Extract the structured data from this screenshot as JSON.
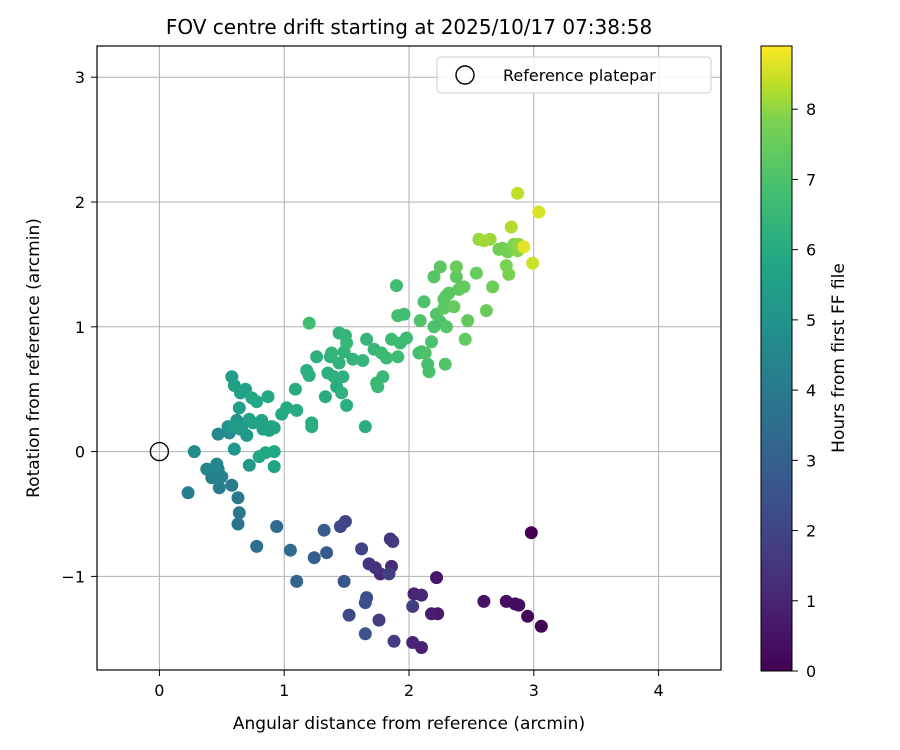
{
  "chart_data": {
    "type": "scatter",
    "title": "FOV centre drift starting at 2025/10/17 07:38:58",
    "xlabel": "Angular distance from reference (arcmin)",
    "ylabel": "Rotation from reference (arcmin)",
    "xlim": [
      -0.5,
      4.5
    ],
    "ylim": [
      -1.75,
      3.25
    ],
    "xticks": [
      0,
      1,
      2,
      3,
      4
    ],
    "xtick_labels": [
      "0",
      "1",
      "2",
      "3",
      "4"
    ],
    "yticks": [
      -1,
      0,
      1,
      2,
      3
    ],
    "ytick_labels": [
      "−1",
      "0",
      "1",
      "2",
      "3"
    ],
    "grid": true,
    "legend": {
      "position": "upper-right",
      "label": "Reference platepar"
    },
    "reference_point": {
      "x": 0,
      "y": 0
    },
    "colorbar": {
      "label": "Hours from first FF file",
      "colormap": "viridis",
      "range": [
        0,
        8.9
      ],
      "ticks": [
        0,
        1,
        2,
        3,
        4,
        5,
        6,
        7,
        8
      ],
      "tick_labels": [
        "0",
        "1",
        "2",
        "3",
        "4",
        "5",
        "6",
        "7",
        "8"
      ]
    },
    "points": [
      [
        2.98,
        -0.65,
        0.0
      ],
      [
        3.06,
        -1.4,
        0.1
      ],
      [
        2.95,
        -1.32,
        0.2
      ],
      [
        2.85,
        -1.22,
        0.3
      ],
      [
        2.88,
        -1.23,
        0.35
      ],
      [
        2.78,
        -1.2,
        0.4
      ],
      [
        2.6,
        -1.2,
        0.5
      ],
      [
        2.22,
        -1.01,
        0.6
      ],
      [
        2.23,
        -1.3,
        0.7
      ],
      [
        2.18,
        -1.3,
        0.8
      ],
      [
        2.1,
        -1.57,
        0.9
      ],
      [
        2.03,
        -1.53,
        1.0
      ],
      [
        2.04,
        -1.14,
        1.05
      ],
      [
        2.1,
        -1.15,
        1.1
      ],
      [
        1.86,
        -0.92,
        1.2
      ],
      [
        1.77,
        -0.98,
        1.3
      ],
      [
        1.73,
        -0.93,
        1.4
      ],
      [
        1.68,
        -0.9,
        1.5
      ],
      [
        1.85,
        -0.7,
        1.6
      ],
      [
        1.87,
        -0.72,
        1.65
      ],
      [
        1.76,
        -1.35,
        1.7
      ],
      [
        1.88,
        -1.52,
        1.75
      ],
      [
        2.03,
        -1.24,
        1.8
      ],
      [
        1.84,
        -0.98,
        1.85
      ],
      [
        1.62,
        -0.78,
        1.9
      ],
      [
        1.49,
        -0.56,
        2.0
      ],
      [
        1.45,
        -0.6,
        2.1
      ],
      [
        1.52,
        -1.31,
        2.2
      ],
      [
        1.66,
        -1.17,
        2.3
      ],
      [
        1.65,
        -1.21,
        2.4
      ],
      [
        1.65,
        -1.46,
        2.5
      ],
      [
        1.48,
        -1.04,
        2.6
      ],
      [
        1.34,
        -0.81,
        2.8
      ],
      [
        1.32,
        -0.63,
        2.9
      ],
      [
        1.24,
        -0.85,
        3.0
      ],
      [
        1.1,
        -1.04,
        3.2
      ],
      [
        0.94,
        -0.6,
        3.3
      ],
      [
        1.05,
        -0.79,
        3.4
      ],
      [
        0.78,
        -0.76,
        3.6
      ],
      [
        0.63,
        -0.58,
        3.8
      ],
      [
        0.64,
        -0.49,
        3.9
      ],
      [
        0.63,
        -0.37,
        4.0
      ],
      [
        0.58,
        -0.27,
        4.1
      ],
      [
        0.23,
        -0.33,
        4.15
      ],
      [
        0.48,
        -0.29,
        4.2
      ],
      [
        0.42,
        -0.21,
        4.3
      ],
      [
        0.5,
        -0.2,
        4.35
      ],
      [
        0.47,
        -0.14,
        4.4
      ],
      [
        0.38,
        -0.14,
        4.45
      ],
      [
        0.46,
        -0.1,
        4.5
      ],
      [
        0.47,
        0.14,
        4.6
      ],
      [
        0.28,
        0.0,
        4.7
      ],
      [
        0.56,
        0.15,
        4.8
      ],
      [
        0.62,
        0.25,
        5.0
      ],
      [
        0.55,
        0.2,
        5.1
      ],
      [
        0.6,
        0.02,
        5.15
      ],
      [
        0.7,
        0.13,
        5.2
      ],
      [
        0.72,
        -0.11,
        5.25
      ],
      [
        0.65,
        0.18,
        5.3
      ],
      [
        0.6,
        0.21,
        5.35
      ],
      [
        0.66,
        0.2,
        5.4
      ],
      [
        0.64,
        0.35,
        5.45
      ],
      [
        0.58,
        0.6,
        5.5
      ],
      [
        0.6,
        0.53,
        5.55
      ],
      [
        0.69,
        0.5,
        5.6
      ],
      [
        0.65,
        0.47,
        5.62
      ],
      [
        0.72,
        0.26,
        5.65
      ],
      [
        0.75,
        0.23,
        5.68
      ],
      [
        0.82,
        0.25,
        5.7
      ],
      [
        0.83,
        0.18,
        5.72
      ],
      [
        0.88,
        0.17,
        5.75
      ],
      [
        0.92,
        0.19,
        5.78
      ],
      [
        0.9,
        0.2,
        5.8
      ],
      [
        0.92,
        -0.12,
        5.82
      ],
      [
        0.8,
        -0.04,
        5.85
      ],
      [
        0.85,
        -0.01,
        5.88
      ],
      [
        0.92,
        0.0,
        5.9
      ],
      [
        0.87,
        0.44,
        5.92
      ],
      [
        0.78,
        0.4,
        5.94
      ],
      [
        0.74,
        0.43,
        5.96
      ],
      [
        0.98,
        0.3,
        6.0
      ],
      [
        1.02,
        0.35,
        6.02
      ],
      [
        1.1,
        0.33,
        6.04
      ],
      [
        1.09,
        0.5,
        6.06
      ],
      [
        1.22,
        0.2,
        6.08
      ],
      [
        1.22,
        0.23,
        6.1
      ],
      [
        1.33,
        0.44,
        6.12
      ],
      [
        1.42,
        0.52,
        6.14
      ],
      [
        1.5,
        0.37,
        6.16
      ],
      [
        1.65,
        0.2,
        6.18
      ],
      [
        1.18,
        0.65,
        6.2
      ],
      [
        1.2,
        0.61,
        6.22
      ],
      [
        1.26,
        0.76,
        6.24
      ],
      [
        1.37,
        0.76,
        6.26
      ],
      [
        1.35,
        0.63,
        6.28
      ],
      [
        1.4,
        0.6,
        6.3
      ],
      [
        1.46,
        0.47,
        6.32
      ],
      [
        1.47,
        0.6,
        6.34
      ],
      [
        1.44,
        0.71,
        6.36
      ],
      [
        1.48,
        0.8,
        6.38
      ],
      [
        1.38,
        0.79,
        6.4
      ],
      [
        1.44,
        0.95,
        6.42
      ],
      [
        1.49,
        0.93,
        6.44
      ],
      [
        1.55,
        0.74,
        6.46
      ],
      [
        1.63,
        0.73,
        6.48
      ],
      [
        1.66,
        0.9,
        6.5
      ],
      [
        1.5,
        0.87,
        6.52
      ],
      [
        1.72,
        0.82,
        6.55
      ],
      [
        1.74,
        0.55,
        6.58
      ],
      [
        1.75,
        0.52,
        6.6
      ],
      [
        1.79,
        0.6,
        6.62
      ],
      [
        1.78,
        0.79,
        6.65
      ],
      [
        1.82,
        0.75,
        6.68
      ],
      [
        1.86,
        0.9,
        6.7
      ],
      [
        1.91,
        0.76,
        6.72
      ],
      [
        1.93,
        0.87,
        6.75
      ],
      [
        1.98,
        0.91,
        6.78
      ],
      [
        1.9,
        1.33,
        6.8
      ],
      [
        1.2,
        1.03,
        6.82
      ],
      [
        1.91,
        1.09,
        6.85
      ],
      [
        1.96,
        1.1,
        6.88
      ],
      [
        2.1,
        0.8,
        6.9
      ],
      [
        2.08,
        0.79,
        6.92
      ],
      [
        2.15,
        0.7,
        6.95
      ],
      [
        2.16,
        0.64,
        6.98
      ],
      [
        2.18,
        0.88,
        7.0
      ],
      [
        2.25,
        1.04,
        7.02
      ],
      [
        2.2,
        1.0,
        7.05
      ],
      [
        2.12,
        1.2,
        7.08
      ],
      [
        2.13,
        0.79,
        7.1
      ],
      [
        2.09,
        1.05,
        7.12
      ],
      [
        2.22,
        1.1,
        7.15
      ],
      [
        2.29,
        0.7,
        7.18
      ],
      [
        2.3,
        1.0,
        7.2
      ],
      [
        2.2,
        1.4,
        7.22
      ],
      [
        2.28,
        1.22,
        7.25
      ],
      [
        2.3,
        1.25,
        7.28
      ],
      [
        2.32,
        1.27,
        7.3
      ],
      [
        2.28,
        1.15,
        7.33
      ],
      [
        2.25,
        1.48,
        7.36
      ],
      [
        2.38,
        1.4,
        7.4
      ],
      [
        2.4,
        1.3,
        7.42
      ],
      [
        2.45,
        0.9,
        7.45
      ],
      [
        2.47,
        1.05,
        7.48
      ],
      [
        2.44,
        1.32,
        7.5
      ],
      [
        2.36,
        1.16,
        7.52
      ],
      [
        2.54,
        1.43,
        7.55
      ],
      [
        2.38,
        1.48,
        7.58
      ],
      [
        2.62,
        1.13,
        7.6
      ],
      [
        2.67,
        1.32,
        7.65
      ],
      [
        2.75,
        1.63,
        7.7
      ],
      [
        2.72,
        1.62,
        7.75
      ],
      [
        2.79,
        1.6,
        7.8
      ],
      [
        2.78,
        1.49,
        7.85
      ],
      [
        2.8,
        1.42,
        7.9
      ],
      [
        2.84,
        1.66,
        7.95
      ],
      [
        2.87,
        1.61,
        8.0
      ],
      [
        2.88,
        1.66,
        8.05
      ],
      [
        2.56,
        1.7,
        8.1
      ],
      [
        2.65,
        1.7,
        8.15
      ],
      [
        2.6,
        1.69,
        8.2
      ],
      [
        2.82,
        1.8,
        8.3
      ],
      [
        2.87,
        2.07,
        8.4
      ],
      [
        2.99,
        1.51,
        8.5
      ],
      [
        3.04,
        1.92,
        8.6
      ],
      [
        2.92,
        1.64,
        8.7
      ]
    ]
  }
}
